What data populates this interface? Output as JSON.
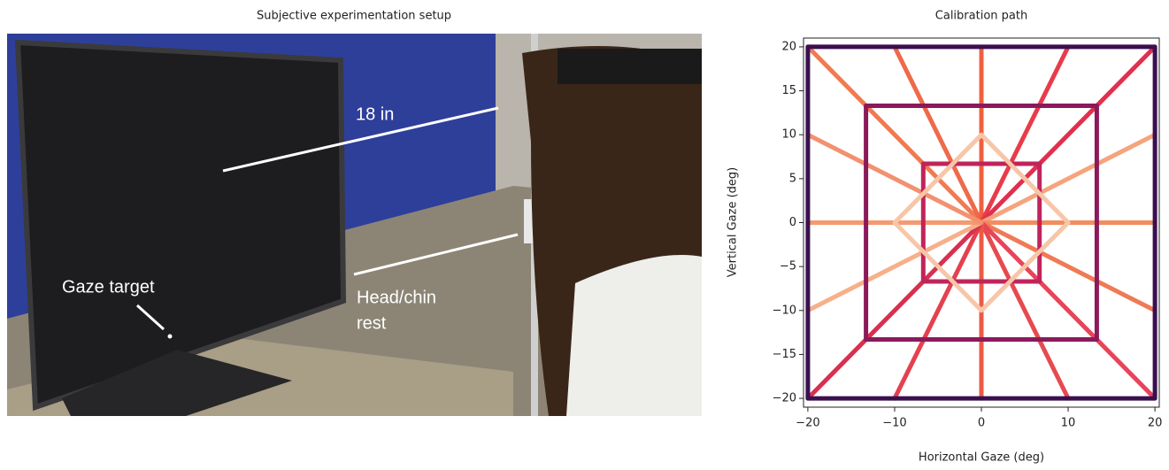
{
  "photo": {
    "title": "Subjective experimentation setup",
    "annotations": [
      "18 in",
      "Gaze target",
      "Head/chin",
      "rest"
    ]
  },
  "chart_data": {
    "type": "line",
    "title": "Calibration path",
    "xlabel": "Horizontal Gaze (deg)",
    "ylabel": "Vertical Gaze (deg)",
    "xlim": [
      -20.5,
      20.5
    ],
    "ylim": [
      -21,
      21
    ],
    "xticks": [
      {
        "value": -20,
        "label": "−20"
      },
      {
        "value": -10,
        "label": "−10"
      },
      0,
      10,
      20
    ],
    "yticks": [
      {
        "value": -20,
        "label": "−20"
      },
      {
        "value": -15,
        "label": "−15"
      },
      {
        "value": -10,
        "label": "−10"
      },
      {
        "value": -5,
        "label": "−5"
      },
      0,
      5,
      10,
      15,
      20
    ],
    "series": [
      {
        "color": "#f07a52",
        "x": [
          0,
          -20
        ],
        "values": [
          0,
          20
        ]
      },
      {
        "color": "#ef6a4a",
        "x": [
          0,
          -10
        ],
        "values": [
          0,
          20
        ]
      },
      {
        "color": "#f0603f",
        "x": [
          0,
          0
        ],
        "values": [
          0,
          20
        ]
      },
      {
        "color": "#e83c4a",
        "x": [
          0,
          10
        ],
        "values": [
          0,
          20
        ]
      },
      {
        "color": "#e0304e",
        "x": [
          0,
          20
        ],
        "values": [
          0,
          20
        ]
      },
      {
        "color": "#f5a47e",
        "x": [
          0,
          20
        ],
        "values": [
          0,
          10
        ]
      },
      {
        "color": "#f28d60",
        "x": [
          0,
          20
        ],
        "values": [
          0,
          0
        ]
      },
      {
        "color": "#f07a55",
        "x": [
          0,
          20
        ],
        "values": [
          0,
          -10
        ]
      },
      {
        "color": "#e8445a",
        "x": [
          0,
          20
        ],
        "values": [
          0,
          -20
        ]
      },
      {
        "color": "#e64a50",
        "x": [
          0,
          10
        ],
        "values": [
          0,
          -20
        ]
      },
      {
        "color": "#ec5a45",
        "x": [
          0,
          0
        ],
        "values": [
          0,
          -20
        ]
      },
      {
        "color": "#e5404e",
        "x": [
          0,
          -10
        ],
        "values": [
          0,
          -20
        ]
      },
      {
        "color": "#d8304f",
        "x": [
          0,
          -20
        ],
        "values": [
          0,
          -20
        ]
      },
      {
        "color": "#f6b08a",
        "x": [
          0,
          -20
        ],
        "values": [
          0,
          -10
        ]
      },
      {
        "color": "#f49a70",
        "x": [
          0,
          -20
        ],
        "values": [
          0,
          0
        ]
      },
      {
        "color": "#f29170",
        "x": [
          0,
          -20
        ],
        "values": [
          0,
          10
        ]
      },
      {
        "color": "#3b0f4f",
        "x": [
          -20,
          20,
          20,
          -20,
          -20
        ],
        "values": [
          20,
          20,
          -20,
          -20,
          20
        ]
      },
      {
        "color": "#8a1a5a",
        "x": [
          -13.3,
          13.3,
          13.3,
          -13.3,
          -13.3
        ],
        "values": [
          13.3,
          13.3,
          -13.3,
          -13.3,
          13.3
        ]
      },
      {
        "color": "#c0245a",
        "x": [
          -6.7,
          6.7,
          6.7,
          -6.7,
          -6.7
        ],
        "values": [
          6.7,
          6.7,
          -6.7,
          -6.7,
          6.7
        ]
      },
      {
        "color": "#f7c6a8",
        "x": [
          0,
          10,
          0,
          -10,
          0
        ],
        "values": [
          10,
          0,
          -10,
          0,
          10
        ]
      }
    ]
  }
}
